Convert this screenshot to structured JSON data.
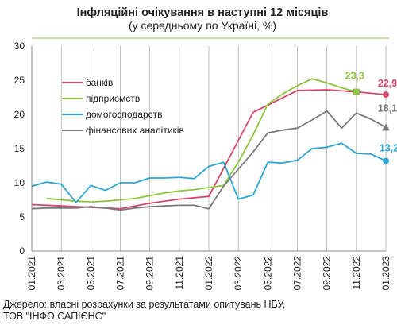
{
  "chart_data": {
    "type": "line",
    "title": "Інфляційні очікування в наступні  12 місяців",
    "subtitle": "(у середньому по Україні, %)",
    "source_lines": [
      "Джерело: власні розрахунки за результатами  опитувань НБУ,",
      "ТОВ \"ІНФО САПІЄНС\""
    ],
    "ylim": [
      0,
      30
    ],
    "yticks": [
      0,
      5,
      10,
      15,
      20,
      25,
      30
    ],
    "x": [
      "01.2021",
      "02.2021",
      "03.2021",
      "04.2021",
      "05.2021",
      "06.2021",
      "07.2021",
      "08.2021",
      "09.2021",
      "10.2021",
      "11.2021",
      "12.2021",
      "01.2022",
      "02.2022",
      "03.2022",
      "04.2022",
      "05.2022",
      "06.2022",
      "07.2022",
      "08.2022",
      "09.2022",
      "10.2022",
      "11.2022",
      "12.2022",
      "01.2023"
    ],
    "xtick_labels": [
      "01.2021",
      "03.2021",
      "05.2021",
      "07.2021",
      "09.2021",
      "11.2021",
      "01.2022",
      "03.2022",
      "05.2022",
      "07.2022",
      "09.2022",
      "11.2022",
      "01.2023"
    ],
    "legend_position": "top-left",
    "grid": {
      "vertical": true,
      "horizontal": false
    },
    "series": [
      {
        "name": "банків",
        "color": "#d6476a",
        "values": [
          6.8,
          null,
          6.6,
          null,
          6.4,
          null,
          6.2,
          null,
          7.0,
          null,
          7.6,
          null,
          8.0,
          null,
          null,
          20.3,
          null,
          null,
          23.5,
          null,
          23.6,
          null,
          23.3,
          null,
          22.9
        ],
        "end_label": "22,9",
        "end_marker": "circle"
      },
      {
        "name": "підприємств",
        "color": "#8cc63f",
        "values": [
          null,
          7.7,
          7.5,
          7.3,
          7.2,
          7.3,
          7.5,
          7.7,
          8.1,
          8.5,
          8.8,
          9.0,
          9.3,
          9.6,
          13.0,
          17.0,
          21.5,
          23.0,
          24.2,
          25.2,
          24.6,
          23.9,
          23.3,
          null,
          null
        ],
        "end_label": "23,3",
        "end_marker": "square"
      },
      {
        "name": "домогосподарств",
        "color": "#2aa5d8",
        "values": [
          9.5,
          10.1,
          9.8,
          7.1,
          9.6,
          8.9,
          10.0,
          10.0,
          10.7,
          10.7,
          10.8,
          10.6,
          12.4,
          13.0,
          7.6,
          8.2,
          13.0,
          12.9,
          13.3,
          15.0,
          15.2,
          15.8,
          14.3,
          14.2,
          13.2
        ],
        "end_label": "13,2",
        "end_marker": "circle"
      },
      {
        "name": "фінансових  аналітиків",
        "color": "#7a7a7a",
        "values": [
          6.2,
          6.3,
          6.3,
          6.3,
          6.5,
          6.3,
          6.0,
          6.3,
          6.5,
          6.6,
          6.7,
          6.7,
          6.2,
          9.5,
          12.0,
          14.5,
          17.3,
          17.7,
          18.0,
          19.2,
          20.5,
          18.0,
          20.2,
          19.3,
          18.1
        ],
        "end_label": "18,1",
        "end_marker": "triangle"
      }
    ]
  }
}
